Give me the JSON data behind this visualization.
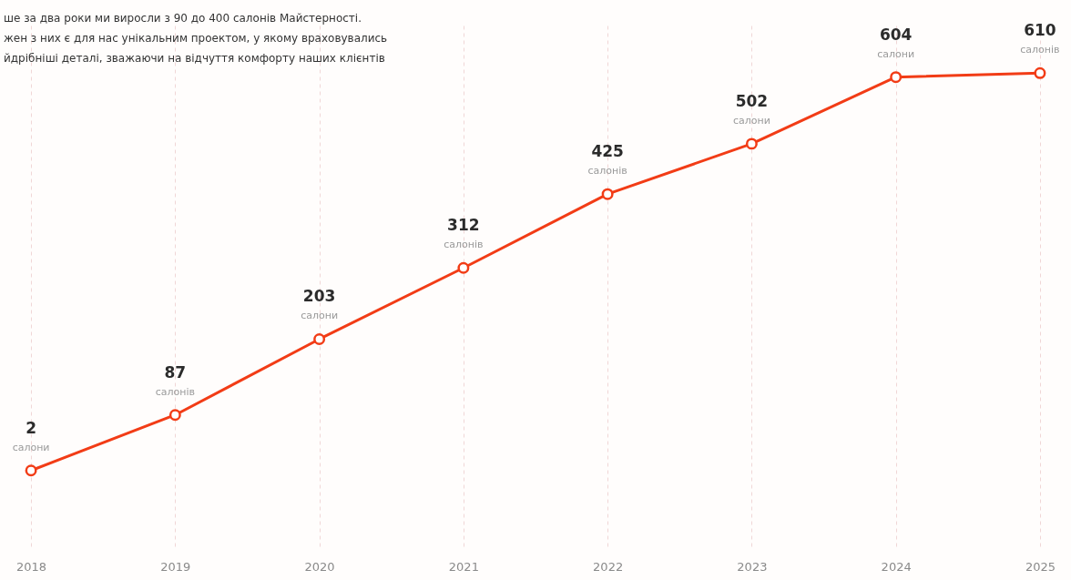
{
  "chart_data": {
    "type": "line",
    "categories": [
      "2018",
      "2019",
      "2020",
      "2021",
      "2022",
      "2023",
      "2024",
      "2025"
    ],
    "series": [
      {
        "color": "#f23c16",
        "values": [
          2,
          87,
          203,
          312,
          425,
          502,
          604,
          610
        ]
      }
    ],
    "data_labels": true,
    "marker": "circle",
    "line_style": "solid",
    "grid": "x",
    "tick_labels": "x",
    "annotations": [
      "ше за два роки ми виросли з 90 до 400 салонів Майстерності.",
      "жен з них є для нас унікальним проектом, у якому враховувались",
      "йдрібніші деталі, зважаючи на відчуття комфорту наших клієнтів",
      {
        "text": "салони",
        "x": "2018",
        "y": 2
      },
      {
        "text": "салонів",
        "x": "2019",
        "y": 87
      },
      {
        "text": "салони",
        "x": "2020",
        "y": 203
      },
      {
        "text": "салонів",
        "x": "2021",
        "y": 312
      },
      {
        "text": "салонів",
        "x": "2022",
        "y": 425
      },
      {
        "text": "салони",
        "x": "2023",
        "y": 502
      },
      {
        "text": "салони",
        "x": "2024",
        "y": 604
      },
      {
        "text": "салонів",
        "x": "2025",
        "y": 610
      }
    ]
  }
}
